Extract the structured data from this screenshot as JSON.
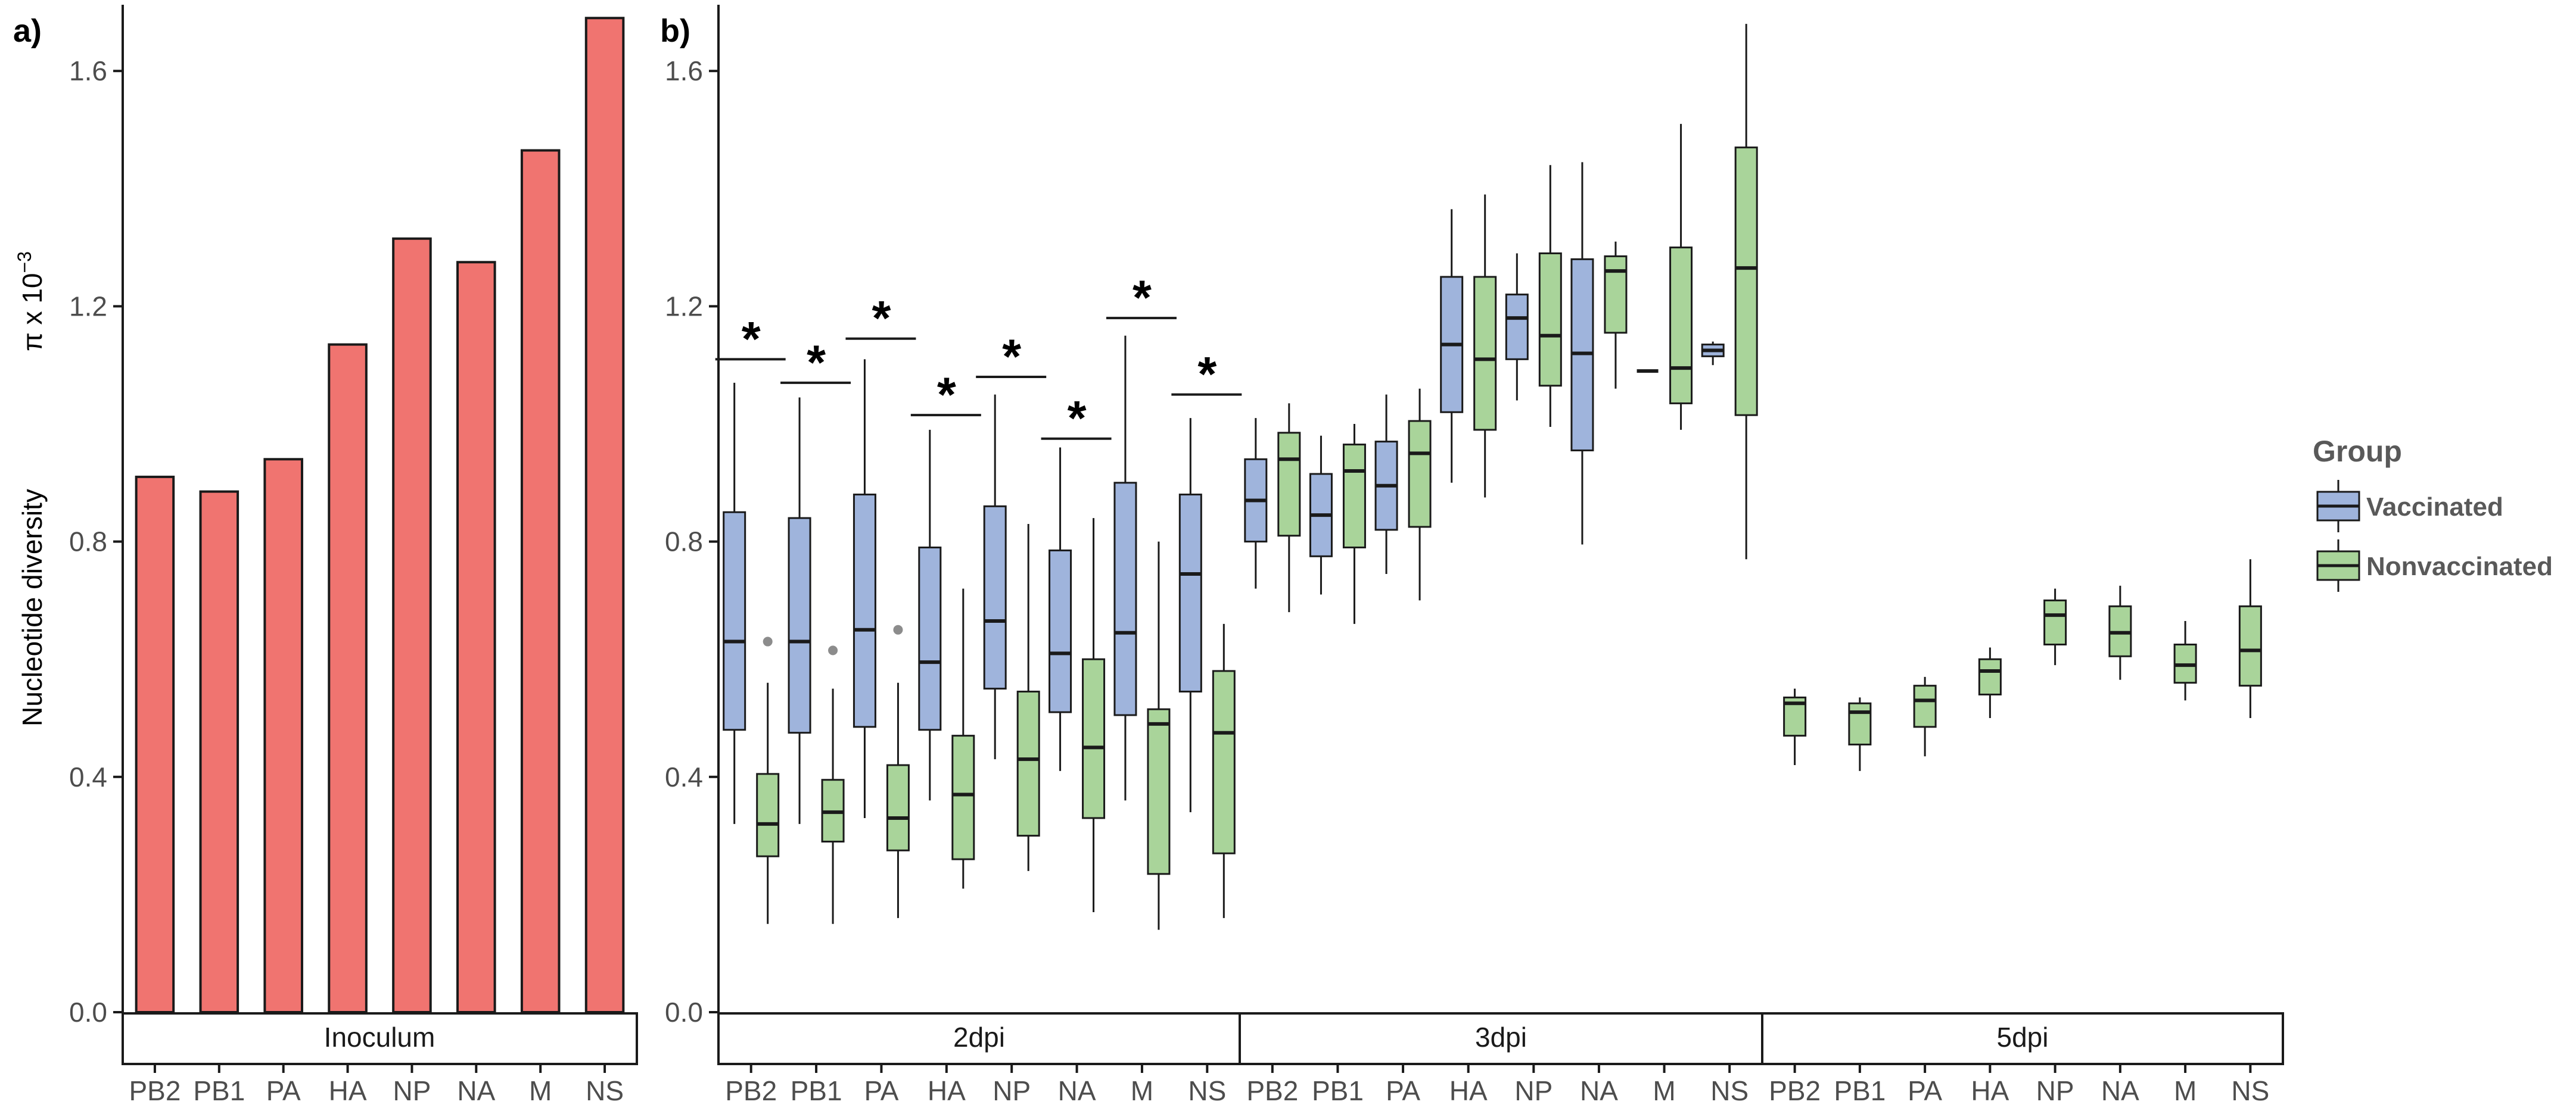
{
  "chart_data": [
    {
      "panel_label": "a)",
      "type": "bar",
      "facet": "Inoculum",
      "categories": [
        "PB2",
        "PB1",
        "PA",
        "HA",
        "NP",
        "NA",
        "M",
        "NS"
      ],
      "values": [
        0.91,
        0.885,
        0.94,
        1.135,
        1.315,
        1.275,
        1.465,
        1.69
      ],
      "ylabel": "Nucleotide diversity",
      "ylabel_unit": [
        "π x 10",
        "−3"
      ],
      "y_ticks": [
        "0.0",
        "0.4",
        "0.8",
        "1.2",
        "1.6"
      ],
      "ylim": [
        0,
        1.7
      ],
      "bar_color": "#f07470"
    },
    {
      "panel_label": "b)",
      "type": "box",
      "ylim": [
        0,
        1.7
      ],
      "y_ticks": [
        "0.0",
        "0.4",
        "0.8",
        "1.2",
        "1.6"
      ],
      "legend": {
        "title": "Group",
        "position": "right",
        "entries": [
          {
            "name": "Vaccinated",
            "color": "#9fb4dc"
          },
          {
            "name": "Nonvaccinated",
            "color": "#a9d49a"
          }
        ]
      },
      "significance_marker": "*",
      "facets": [
        {
          "label": "2dpi",
          "categories": [
            "PB2",
            "PB1",
            "PA",
            "HA",
            "NP",
            "NA",
            "M",
            "NS"
          ],
          "vaccinated": [
            {
              "min": 0.32,
              "q1": 0.48,
              "median": 0.63,
              "q3": 0.85,
              "max": 1.07,
              "outliers": []
            },
            {
              "min": 0.32,
              "q1": 0.475,
              "median": 0.63,
              "q3": 0.84,
              "max": 1.045,
              "outliers": []
            },
            {
              "min": 0.33,
              "q1": 0.485,
              "median": 0.65,
              "q3": 0.88,
              "max": 1.11,
              "outliers": []
            },
            {
              "min": 0.36,
              "q1": 0.48,
              "median": 0.595,
              "q3": 0.79,
              "max": 0.99,
              "outliers": []
            },
            {
              "min": 0.43,
              "q1": 0.55,
              "median": 0.665,
              "q3": 0.86,
              "max": 1.05,
              "outliers": []
            },
            {
              "min": 0.41,
              "q1": 0.51,
              "median": 0.61,
              "q3": 0.785,
              "max": 0.96,
              "outliers": []
            },
            {
              "min": 0.36,
              "q1": 0.505,
              "median": 0.645,
              "q3": 0.9,
              "max": 1.15,
              "outliers": []
            },
            {
              "min": 0.34,
              "q1": 0.545,
              "median": 0.745,
              "q3": 0.88,
              "max": 1.01,
              "outliers": []
            }
          ],
          "nonvaccinated": [
            {
              "min": 0.15,
              "q1": 0.265,
              "median": 0.32,
              "q3": 0.405,
              "max": 0.56,
              "outliers": [
                0.63
              ]
            },
            {
              "min": 0.15,
              "q1": 0.29,
              "median": 0.34,
              "q3": 0.395,
              "max": 0.55,
              "outliers": [
                0.615
              ]
            },
            {
              "min": 0.16,
              "q1": 0.275,
              "median": 0.33,
              "q3": 0.42,
              "max": 0.56,
              "outliers": [
                0.65
              ]
            },
            {
              "min": 0.21,
              "q1": 0.26,
              "median": 0.37,
              "q3": 0.47,
              "max": 0.72,
              "outliers": []
            },
            {
              "min": 0.24,
              "q1": 0.3,
              "median": 0.43,
              "q3": 0.545,
              "max": 0.83,
              "outliers": []
            },
            {
              "min": 0.17,
              "q1": 0.33,
              "median": 0.45,
              "q3": 0.6,
              "max": 0.84,
              "outliers": []
            },
            {
              "min": 0.14,
              "q1": 0.235,
              "median": 0.49,
              "q3": 0.515,
              "max": 0.8,
              "outliers": []
            },
            {
              "min": 0.16,
              "q1": 0.27,
              "median": 0.475,
              "q3": 0.58,
              "max": 0.66,
              "outliers": []
            }
          ],
          "significance_bars": [
            1.11,
            1.07,
            1.145,
            1.015,
            1.08,
            0.975,
            1.18,
            1.05
          ]
        },
        {
          "label": "3dpi",
          "categories": [
            "PB2",
            "PB1",
            "PA",
            "HA",
            "NP",
            "NA",
            "M",
            "NS"
          ],
          "vaccinated": [
            {
              "min": 0.72,
              "q1": 0.8,
              "median": 0.87,
              "q3": 0.94,
              "max": 1.01,
              "outliers": []
            },
            {
              "min": 0.71,
              "q1": 0.775,
              "median": 0.845,
              "q3": 0.915,
              "max": 0.98,
              "outliers": []
            },
            {
              "min": 0.745,
              "q1": 0.82,
              "median": 0.895,
              "q3": 0.97,
              "max": 1.05,
              "outliers": []
            },
            {
              "min": 0.9,
              "q1": 1.02,
              "median": 1.135,
              "q3": 1.25,
              "max": 1.365,
              "outliers": []
            },
            {
              "min": 1.04,
              "q1": 1.11,
              "median": 1.18,
              "q3": 1.22,
              "max": 1.29,
              "outliers": []
            },
            {
              "min": 0.795,
              "q1": 0.955,
              "median": 1.12,
              "q3": 1.28,
              "max": 1.445,
              "outliers": []
            },
            {
              "min": 1.09,
              "q1": 1.09,
              "median": 1.09,
              "q3": 1.09,
              "max": 1.09,
              "outliers": []
            },
            {
              "min": 1.1,
              "q1": 1.115,
              "median": 1.125,
              "q3": 1.135,
              "max": 1.14,
              "outliers": []
            }
          ],
          "nonvaccinated": [
            {
              "min": 0.68,
              "q1": 0.81,
              "median": 0.94,
              "q3": 0.985,
              "max": 1.035,
              "outliers": []
            },
            {
              "min": 0.66,
              "q1": 0.79,
              "median": 0.92,
              "q3": 0.965,
              "max": 1.0,
              "outliers": []
            },
            {
              "min": 0.7,
              "q1": 0.825,
              "median": 0.95,
              "q3": 1.005,
              "max": 1.06,
              "outliers": []
            },
            {
              "min": 0.875,
              "q1": 0.99,
              "median": 1.11,
              "q3": 1.25,
              "max": 1.39,
              "outliers": []
            },
            {
              "min": 0.995,
              "q1": 1.065,
              "median": 1.15,
              "q3": 1.29,
              "max": 1.44,
              "outliers": []
            },
            {
              "min": 1.06,
              "q1": 1.155,
              "median": 1.26,
              "q3": 1.285,
              "max": 1.31,
              "outliers": []
            },
            {
              "min": 0.99,
              "q1": 1.035,
              "median": 1.095,
              "q3": 1.3,
              "max": 1.51,
              "outliers": []
            },
            {
              "min": 0.77,
              "q1": 1.015,
              "median": 1.265,
              "q3": 1.47,
              "max": 1.68,
              "outliers": []
            }
          ],
          "significance_bars": []
        },
        {
          "label": "5dpi",
          "categories": [
            "PB2",
            "PB1",
            "PA",
            "HA",
            "NP",
            "NA",
            "M",
            "NS"
          ],
          "vaccinated": [],
          "nonvaccinated": [
            {
              "min": 0.42,
              "q1": 0.47,
              "median": 0.525,
              "q3": 0.535,
              "max": 0.55,
              "outliers": []
            },
            {
              "min": 0.41,
              "q1": 0.455,
              "median": 0.51,
              "q3": 0.525,
              "max": 0.535,
              "outliers": []
            },
            {
              "min": 0.435,
              "q1": 0.485,
              "median": 0.53,
              "q3": 0.555,
              "max": 0.57,
              "outliers": []
            },
            {
              "min": 0.5,
              "q1": 0.54,
              "median": 0.58,
              "q3": 0.6,
              "max": 0.62,
              "outliers": []
            },
            {
              "min": 0.59,
              "q1": 0.625,
              "median": 0.675,
              "q3": 0.7,
              "max": 0.72,
              "outliers": []
            },
            {
              "min": 0.565,
              "q1": 0.605,
              "median": 0.645,
              "q3": 0.69,
              "max": 0.725,
              "outliers": []
            },
            {
              "min": 0.53,
              "q1": 0.56,
              "median": 0.59,
              "q3": 0.625,
              "max": 0.665,
              "outliers": []
            },
            {
              "min": 0.5,
              "q1": 0.555,
              "median": 0.615,
              "q3": 0.69,
              "max": 0.77,
              "outliers": []
            }
          ],
          "significance_bars": []
        }
      ]
    }
  ]
}
